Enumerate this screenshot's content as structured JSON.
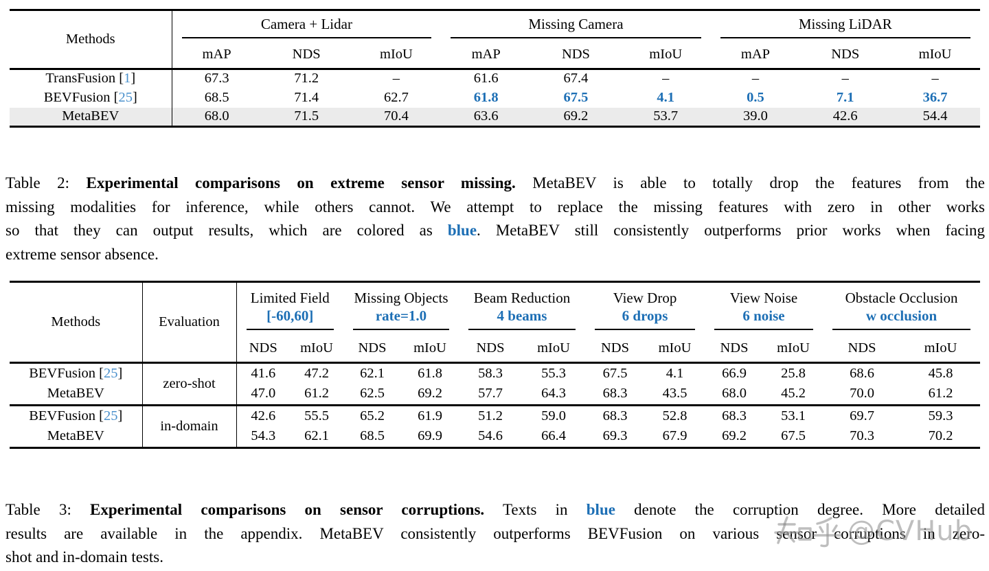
{
  "colors": {
    "accent_blue": "#1d6fb5",
    "citation_blue": "#4a90cc",
    "highlight_row": "#ebebeb",
    "watermark_gray": "#969696"
  },
  "table2": {
    "methods_label": "Methods",
    "groups": [
      {
        "label": "Camera + Lidar"
      },
      {
        "label": "Missing Camera"
      },
      {
        "label": "Missing LiDAR"
      }
    ],
    "sub_headers": [
      "mAP",
      "NDS",
      "mIoU"
    ],
    "rows": [
      {
        "method": "TransFusion",
        "cite": "1",
        "values": [
          "67.3",
          "71.2",
          "–",
          "61.6",
          "67.4",
          "–",
          "–",
          "–",
          "–"
        ]
      },
      {
        "method": "BEVFusion",
        "cite": "25",
        "values": [
          "68.5",
          "71.4",
          "62.7",
          {
            "t": "61.8",
            "b": true
          },
          {
            "t": "67.5",
            "b": true
          },
          {
            "t": "4.1",
            "b": true
          },
          {
            "t": "0.5",
            "b": true
          },
          {
            "t": "7.1",
            "b": true
          },
          {
            "t": "36.7",
            "b": true
          }
        ]
      },
      {
        "method": "MetaBEV",
        "highlight": true,
        "values": [
          "68.0",
          "71.5",
          "70.4",
          "63.6",
          "69.2",
          "53.7",
          "39.0",
          "42.6",
          "54.4"
        ]
      }
    ]
  },
  "caption2": {
    "lines": [
      [
        {
          "t": "Table 2: "
        },
        {
          "t": "Experimental comparisons on extreme sensor missing.",
          "b": true
        },
        {
          "t": " MetaBEV is able to totally drop the features from the"
        }
      ],
      [
        {
          "t": "missing modalities for inference, while others cannot. We attempt to replace the missing features with zero in other works"
        }
      ],
      [
        {
          "t": "so that they can output results, which are colored as "
        },
        {
          "t": "blue",
          "b": true,
          "blue": true
        },
        {
          "t": ". MetaBEV still consistently outperforms prior works when facing"
        }
      ],
      [
        {
          "t": "extreme sensor absence."
        }
      ]
    ]
  },
  "table3": {
    "methods_label": "Methods",
    "evaluation_label": "Evaluation",
    "groups": [
      {
        "title": "Limited Field",
        "param": "[-60,60]"
      },
      {
        "title": "Missing Objects",
        "param": "rate=1.0"
      },
      {
        "title": "Beam Reduction",
        "param": "4 beams"
      },
      {
        "title": "View Drop",
        "param": "6 drops"
      },
      {
        "title": "View Noise",
        "param": "6 noise"
      },
      {
        "title": "Obstacle Occlusion",
        "param": "w occlusion"
      }
    ],
    "sub_headers": [
      "NDS",
      "mIoU"
    ],
    "blocks": [
      {
        "evaluation": "zero-shot",
        "rows": [
          {
            "method": "BEVFusion",
            "cite": "25",
            "values": [
              "41.6",
              "47.2",
              "62.1",
              "61.8",
              "58.3",
              "55.3",
              "67.5",
              "4.1",
              "66.9",
              "25.8",
              "68.6",
              "45.8"
            ]
          },
          {
            "method": "MetaBEV",
            "values": [
              "47.0",
              "61.2",
              "62.5",
              "69.2",
              "57.7",
              "64.3",
              "68.3",
              "43.5",
              "68.0",
              "45.2",
              "70.0",
              "61.2"
            ]
          }
        ]
      },
      {
        "evaluation": "in-domain",
        "rows": [
          {
            "method": "BEVFusion",
            "cite": "25",
            "values": [
              "42.6",
              "55.5",
              "65.2",
              "61.9",
              "51.2",
              "59.0",
              "68.3",
              "52.8",
              "68.3",
              "53.1",
              "69.7",
              "59.3"
            ]
          },
          {
            "method": "MetaBEV",
            "values": [
              "54.3",
              "62.1",
              "68.5",
              "69.9",
              "54.6",
              "66.4",
              "69.3",
              "67.9",
              "69.2",
              "67.5",
              "70.3",
              "70.2"
            ]
          }
        ]
      }
    ]
  },
  "caption3": {
    "lines": [
      [
        {
          "t": "Table 3: "
        },
        {
          "t": "Experimental comparisons on sensor corruptions.",
          "b": true
        },
        {
          "t": " Texts in "
        },
        {
          "t": "blue",
          "b": true,
          "blue": true
        },
        {
          "t": " denote the corruption degree. More detailed"
        }
      ],
      [
        {
          "t": "results are available in the appendix. MetaBEV consistently outperforms BEVFusion on various sensor corruptions in zero-"
        }
      ],
      [
        {
          "t": "shot and in-domain tests."
        }
      ]
    ]
  },
  "watermark": {
    "text": "知乎 @CVHub",
    "handle": "@CVHub"
  }
}
